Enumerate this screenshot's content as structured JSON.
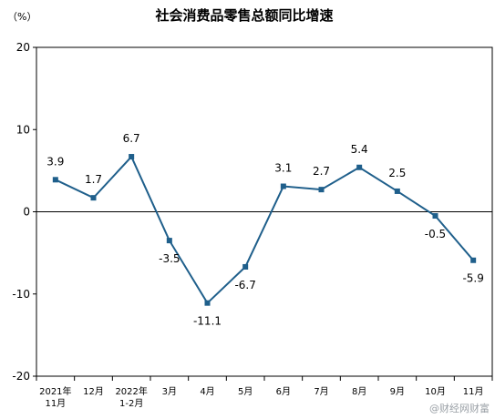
{
  "chart_data": {
    "type": "line",
    "title": "社会消费品零售总额同比增速",
    "unit_label": "（%）",
    "xlabel": "",
    "ylabel": "",
    "ylim": [
      -20,
      20
    ],
    "yticks": [
      "20",
      "10",
      "0",
      "-10",
      "-20"
    ],
    "categories": [
      [
        "2021年",
        "11月"
      ],
      [
        "12月"
      ],
      [
        "2022年",
        "1-2月"
      ],
      [
        "3月"
      ],
      [
        "4月"
      ],
      [
        "5月"
      ],
      [
        "6月"
      ],
      [
        "7月"
      ],
      [
        "8月"
      ],
      [
        "9月"
      ],
      [
        "10月"
      ],
      [
        "11月"
      ]
    ],
    "series": [
      {
        "values": [
          3.9,
          1.7,
          6.7,
          -3.5,
          -11.1,
          -6.7,
          3.1,
          2.7,
          5.4,
          2.5,
          -0.5,
          -5.9
        ],
        "labels": [
          "3.9",
          "1.7",
          "6.7",
          "-3.5",
          "-11.1",
          "-6.7",
          "3.1",
          "2.7",
          "5.4",
          "2.5",
          "-0.5",
          "-5.9"
        ],
        "color": "#1f5f8b"
      }
    ],
    "grid": false,
    "legend": "none"
  },
  "watermark": "@财经网财富"
}
